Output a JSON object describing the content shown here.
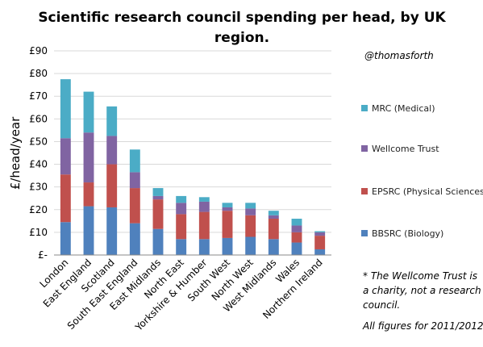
{
  "chart_data": {
    "type": "bar",
    "stacked": true,
    "title_lines": [
      "Scientific research council spending per head, by UK",
      "region."
    ],
    "ylabel": "£/head/year",
    "xlabel": "",
    "ylim": [
      0,
      90
    ],
    "yticks": [
      "£-",
      "£10",
      "£20",
      "£30",
      "£40",
      "£50",
      "£60",
      "£70",
      "£80",
      "£90"
    ],
    "grid": true,
    "legend_position": "right",
    "categories": [
      "London",
      "East England",
      "Scotland",
      "South East England",
      "East Midlands",
      "North East",
      "Yorkshire & Humber",
      "South West",
      "North West",
      "West Midlands",
      "Wales",
      "Northern Ireland"
    ],
    "series": [
      {
        "name": "BBSRC (Biology)",
        "color": "#4f81bd",
        "values": [
          14.5,
          21.5,
          21,
          14,
          11.5,
          7,
          7,
          7.5,
          8,
          7,
          5.5,
          2.5
        ]
      },
      {
        "name": "EPSRC (Physical Sciences)",
        "color": "#c0504d",
        "values": [
          21,
          10.5,
          19,
          15.5,
          13,
          11,
          12,
          12,
          9.5,
          9,
          4.5,
          6
        ]
      },
      {
        "name": "Wellcome Trust",
        "color": "#8064a2",
        "values": [
          16,
          22,
          12.5,
          7,
          1.5,
          5,
          4.5,
          1.5,
          3,
          1.5,
          3,
          1.5
        ]
      },
      {
        "name": "MRC (Medical)",
        "color": "#4bacc6",
        "values": [
          26,
          18,
          13,
          10,
          3.5,
          3,
          2,
          2,
          2.5,
          2,
          3,
          0.5
        ]
      }
    ],
    "annotations": {
      "credit": "@thomasforth",
      "note_lines": [
        "* The Wellcome Trust is",
        "a charity, not a research",
        "council."
      ],
      "figures_note": "All figures for 2011/2012"
    }
  }
}
